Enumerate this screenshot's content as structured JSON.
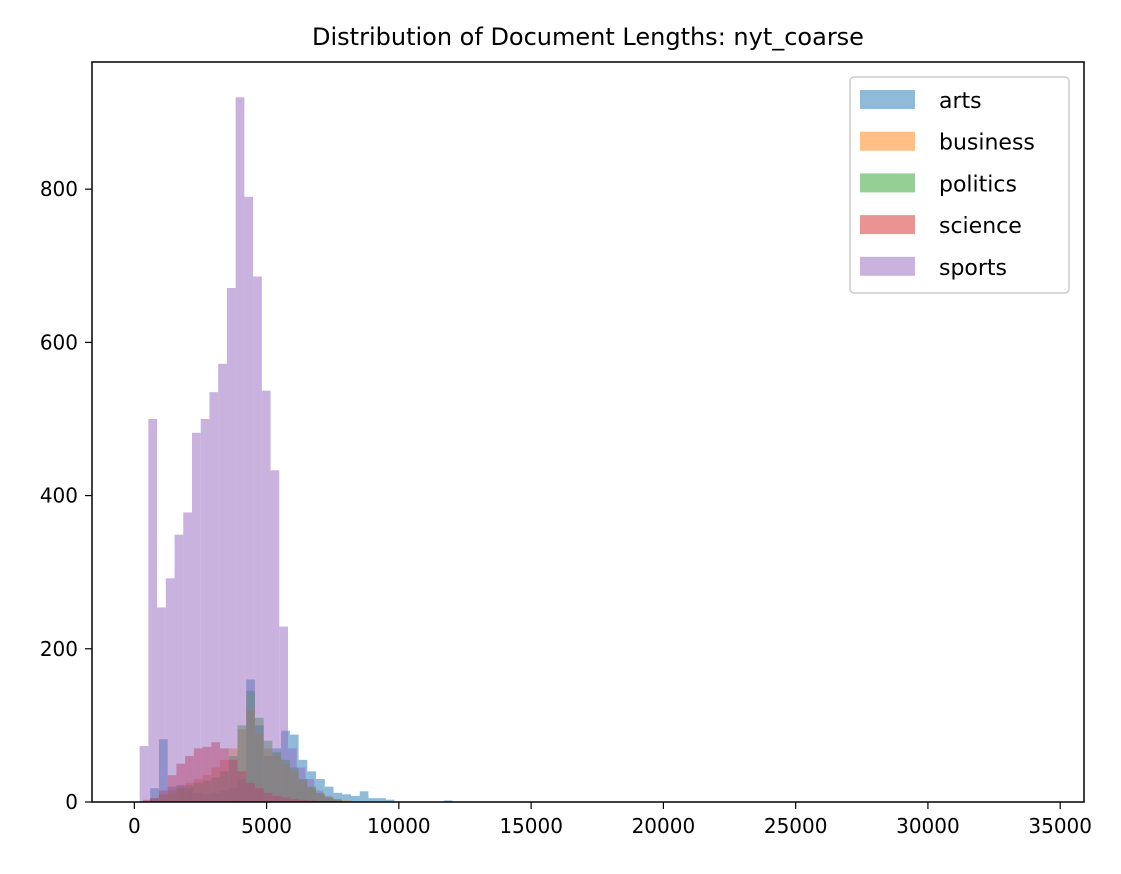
{
  "chart_data": {
    "type": "bar",
    "title": "Distribution of Document Lengths: nyt_coarse",
    "xlabel": "",
    "ylabel": "",
    "xlim": [
      -1600,
      35900
    ],
    "ylim": [
      0,
      966
    ],
    "x_ticks": [
      0,
      5000,
      10000,
      15000,
      20000,
      25000,
      30000,
      35000
    ],
    "x_tick_labels": [
      "0",
      "5000",
      "10000",
      "15000",
      "20000",
      "25000",
      "30000",
      "35000"
    ],
    "y_ticks": [
      0,
      200,
      400,
      600,
      800
    ],
    "y_tick_labels": [
      "0",
      "200",
      "400",
      "600",
      "800"
    ],
    "grid": false,
    "legend_position": "top-right",
    "histogram": true,
    "bin_width": 330,
    "bar_opacity": 0.5,
    "series": [
      {
        "name": "arts",
        "color": "#1f77b4",
        "bin_starts": [
          600,
          930,
          1260,
          1590,
          1920,
          2250,
          2580,
          2910,
          3240,
          3570,
          3900,
          4230,
          4560,
          4890,
          5220,
          5550,
          5880,
          6210,
          6540,
          6870,
          7200,
          7530,
          7860,
          8190,
          8520,
          8850,
          9180,
          9510,
          11700
        ],
        "values": [
          18,
          82,
          20,
          22,
          18,
          12,
          10,
          12,
          15,
          18,
          30,
          160,
          100,
          60,
          70,
          93,
          88,
          55,
          40,
          30,
          20,
          12,
          10,
          8,
          14,
          5,
          5,
          3,
          2
        ]
      },
      {
        "name": "business",
        "color": "#ff7f0e",
        "bin_starts": [
          600,
          930,
          1260,
          1590,
          1920,
          2250,
          2580,
          2910,
          3240,
          3570,
          3900,
          4230,
          4560,
          4890,
          5220,
          5550,
          5880,
          6210,
          6540,
          6870,
          7200,
          7530,
          7860
        ],
        "values": [
          2,
          5,
          10,
          18,
          25,
          30,
          35,
          45,
          55,
          70,
          95,
          120,
          90,
          70,
          60,
          50,
          40,
          28,
          18,
          10,
          6,
          3,
          2
        ]
      },
      {
        "name": "politics",
        "color": "#2ca02c",
        "bin_starts": [
          600,
          930,
          1260,
          1590,
          1920,
          2250,
          2580,
          2910,
          3240,
          3570,
          3900,
          4230,
          4560,
          4890,
          5220,
          5550,
          5880,
          6210,
          6540,
          6870,
          7200,
          7530
        ],
        "values": [
          5,
          10,
          15,
          20,
          22,
          25,
          28,
          32,
          40,
          60,
          100,
          145,
          110,
          80,
          65,
          55,
          45,
          30,
          20,
          12,
          6,
          3
        ]
      },
      {
        "name": "science",
        "color": "#d62728",
        "bin_starts": [
          330,
          600,
          930,
          1260,
          1590,
          1920,
          2250,
          2580,
          2910,
          3240,
          3570,
          3900,
          4230,
          4560,
          4890,
          5220,
          5550,
          5880,
          6210,
          6540,
          6870
        ],
        "values": [
          3,
          5,
          15,
          35,
          50,
          60,
          70,
          72,
          78,
          70,
          55,
          40,
          25,
          18,
          12,
          8,
          6,
          4,
          3,
          2,
          1
        ]
      },
      {
        "name": "sports",
        "color": "#9467bd",
        "bin_starts": [
          200,
          530,
          860,
          1190,
          1520,
          1850,
          2180,
          2510,
          2840,
          3170,
          3500,
          3830,
          4160,
          4490,
          4820,
          5150,
          5480,
          5810,
          6140,
          6470,
          6800,
          7130,
          7460
        ],
        "values": [
          73,
          500,
          254,
          292,
          349,
          378,
          482,
          500,
          535,
          572,
          671,
          920,
          790,
          686,
          537,
          433,
          229,
          70,
          45,
          30,
          15,
          8,
          4
        ]
      }
    ]
  }
}
